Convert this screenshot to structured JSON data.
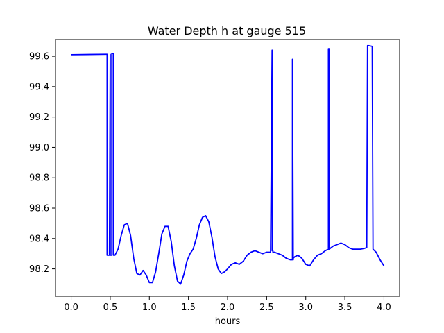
{
  "chart_data": {
    "type": "line",
    "title": "Water Depth h at gauge 515",
    "xlabel": "hours",
    "ylabel": "",
    "xlim": [
      -0.2,
      4.2
    ],
    "ylim": [
      98.02,
      99.71
    ],
    "grid": false,
    "legend": "none",
    "xticks": [
      0.0,
      0.5,
      1.0,
      1.5,
      2.0,
      2.5,
      3.0,
      3.5,
      4.0
    ],
    "xtick_labels": [
      "0.0",
      "0.5",
      "1.0",
      "1.5",
      "2.0",
      "2.5",
      "3.0",
      "3.5",
      "4.0"
    ],
    "yticks": [
      98.2,
      98.4,
      98.6,
      98.8,
      99.0,
      99.2,
      99.4,
      99.6
    ],
    "ytick_labels": [
      "98.2",
      "98.4",
      "98.6",
      "98.8",
      "99.0",
      "99.2",
      "99.4",
      "99.6"
    ],
    "series": [
      {
        "name": "h",
        "color": "#0000ff",
        "x": [
          0.0,
          0.45,
          0.46,
          0.46,
          0.47,
          0.48,
          0.49,
          0.5,
          0.5,
          0.51,
          0.52,
          0.52,
          0.53,
          0.54,
          0.54,
          0.56,
          0.6,
          0.64,
          0.68,
          0.72,
          0.76,
          0.8,
          0.84,
          0.88,
          0.92,
          0.96,
          1.0,
          1.04,
          1.08,
          1.12,
          1.16,
          1.2,
          1.24,
          1.28,
          1.32,
          1.36,
          1.4,
          1.44,
          1.48,
          1.52,
          1.56,
          1.6,
          1.64,
          1.68,
          1.72,
          1.76,
          1.8,
          1.84,
          1.88,
          1.92,
          1.96,
          2.0,
          2.05,
          2.1,
          2.15,
          2.2,
          2.25,
          2.3,
          2.35,
          2.4,
          2.45,
          2.5,
          2.55,
          2.57,
          2.57,
          2.58,
          2.58,
          2.6,
          2.65,
          2.7,
          2.75,
          2.8,
          2.83,
          2.83,
          2.84,
          2.84,
          2.86,
          2.9,
          2.95,
          3.0,
          3.05,
          3.1,
          3.15,
          3.2,
          3.25,
          3.29,
          3.29,
          3.3,
          3.3,
          3.35,
          3.4,
          3.45,
          3.5,
          3.55,
          3.6,
          3.65,
          3.7,
          3.75,
          3.78,
          3.79,
          3.8,
          3.85,
          3.85,
          3.86,
          3.9,
          3.95,
          4.0
        ],
        "y": [
          99.61,
          99.613,
          99.613,
          98.29,
          98.29,
          98.29,
          98.29,
          99.612,
          98.29,
          98.29,
          98.29,
          99.618,
          99.618,
          99.618,
          98.29,
          98.29,
          98.33,
          98.42,
          98.49,
          98.5,
          98.42,
          98.27,
          98.17,
          98.16,
          98.19,
          98.16,
          98.11,
          98.11,
          98.18,
          98.3,
          98.43,
          98.48,
          98.48,
          98.38,
          98.22,
          98.12,
          98.1,
          98.16,
          98.25,
          98.3,
          98.33,
          98.4,
          98.49,
          98.54,
          98.55,
          98.51,
          98.41,
          98.28,
          98.2,
          98.17,
          98.18,
          98.2,
          98.23,
          98.24,
          98.23,
          98.25,
          98.29,
          98.31,
          98.32,
          98.31,
          98.3,
          98.31,
          98.31,
          99.64,
          98.32,
          98.32,
          98.31,
          98.31,
          98.3,
          98.29,
          98.27,
          98.26,
          98.26,
          99.58,
          98.26,
          98.27,
          98.28,
          98.29,
          98.27,
          98.23,
          98.22,
          98.26,
          98.29,
          98.3,
          98.32,
          98.33,
          99.65,
          99.65,
          98.33,
          98.35,
          98.36,
          98.37,
          98.36,
          98.34,
          98.33,
          98.33,
          98.33,
          98.335,
          98.34,
          99.67,
          99.67,
          99.665,
          99.65,
          98.33,
          98.31,
          98.26,
          98.22
        ]
      }
    ]
  }
}
